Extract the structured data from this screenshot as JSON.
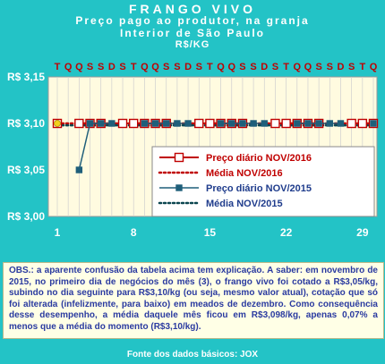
{
  "header": {
    "title": "FRANGO VIVO",
    "subtitle": "Preço pago ao produtor, na granja",
    "region": "Interior de São Paulo",
    "unit": "R$/KG"
  },
  "colors": {
    "background": "#23c3c6",
    "plot_bg": "#fffbe0",
    "series_2016": "#c00000",
    "series_2015": "#1f5f7a",
    "legend_text_2016": "#c00000",
    "legend_text_2015": "#1f3c8c"
  },
  "chart_data": {
    "type": "line",
    "title": "FRANGO VIVO",
    "ylabel": "R$/KG",
    "ylim": [
      3.0,
      3.15
    ],
    "xlim": [
      1,
      30
    ],
    "y_ticks": [
      "R$ 3,15",
      "R$ 3,10",
      "R$ 3,05",
      "R$ 3,00"
    ],
    "y_tick_values": [
      3.15,
      3.1,
      3.05,
      3.0
    ],
    "x_ticks": [
      "1",
      "8",
      "15",
      "22",
      "29"
    ],
    "x_tick_values": [
      1,
      8,
      15,
      22,
      29
    ],
    "day_letters": [
      "T",
      "Q",
      "Q",
      "S",
      "S",
      "D",
      "S",
      "T",
      "Q",
      "Q",
      "S",
      "S",
      "D",
      "S",
      "T",
      "Q",
      "Q",
      "S",
      "S",
      "D",
      "S",
      "T",
      "Q",
      "Q",
      "S",
      "S",
      "D",
      "S",
      "T",
      "Q"
    ],
    "grid": "vertical",
    "legend_position": "center-right",
    "x": [
      1,
      2,
      3,
      4,
      5,
      6,
      7,
      8,
      9,
      10,
      11,
      12,
      13,
      14,
      15,
      16,
      17,
      18,
      19,
      20,
      21,
      22,
      23,
      24,
      25,
      26,
      27,
      28,
      29,
      30
    ],
    "series": [
      {
        "name": "Preço diário NOV/2016",
        "style": "line-square",
        "values": [
          3.1,
          null,
          3.1,
          3.1,
          3.1,
          null,
          3.1,
          3.1,
          3.1,
          3.1,
          3.1,
          null,
          null,
          3.1,
          3.1,
          3.1,
          3.1,
          3.1,
          null,
          null,
          3.1,
          3.1,
          3.1,
          3.1,
          3.1,
          null,
          null,
          3.1,
          3.1,
          3.1
        ]
      },
      {
        "name": "Média NOV/2016",
        "style": "dotted",
        "values": [
          3.1,
          3.1,
          3.1,
          3.1,
          3.1,
          3.1,
          3.1,
          3.1,
          3.1,
          3.1,
          3.1,
          3.1,
          3.1,
          3.1,
          3.1,
          3.1,
          3.1,
          3.1,
          3.1,
          3.1,
          3.1,
          3.1,
          3.1,
          3.1,
          3.1,
          3.1,
          3.1,
          3.1,
          3.1,
          3.1
        ]
      },
      {
        "name": "Preço diário NOV/2015",
        "style": "line-square",
        "values": [
          null,
          null,
          3.05,
          3.1,
          3.1,
          3.1,
          null,
          null,
          3.1,
          3.1,
          3.1,
          3.1,
          3.1,
          null,
          null,
          3.1,
          3.1,
          3.1,
          3.1,
          3.1,
          null,
          null,
          3.1,
          3.1,
          3.1,
          3.1,
          3.1,
          null,
          null,
          3.1
        ]
      },
      {
        "name": "Média NOV/2015",
        "style": "dotted",
        "values": [
          3.098,
          3.098,
          3.098,
          3.098,
          3.098,
          3.098,
          3.098,
          3.098,
          3.098,
          3.098,
          3.098,
          3.098,
          3.098,
          3.098,
          3.098,
          3.098,
          3.098,
          3.098,
          3.098,
          3.098,
          3.098,
          3.098,
          3.098,
          3.098,
          3.098,
          3.098,
          3.098,
          3.098,
          3.098,
          3.098
        ]
      }
    ]
  },
  "obs_text": "OBS.: a aparente confusão da tabela acima tem explicação. A saber: em novembro de 2015, no primeiro dia de negócios do mês (3), o frango vivo foi cotado a R$3,05/kg, subindo no dia seguinte para R$3,10/kg (ou seja, mesmo valor atual), cotação que só foi alterada (infelizmente, para baixo) em meados de dezembro. Como consequência desse desempenho, a média daquele mês ficou em R$3,098/kg, apenas 0,07% a menos que a média do momento (R$3,10/kg).",
  "footer": "Fonte dos dados básicos: JOX"
}
